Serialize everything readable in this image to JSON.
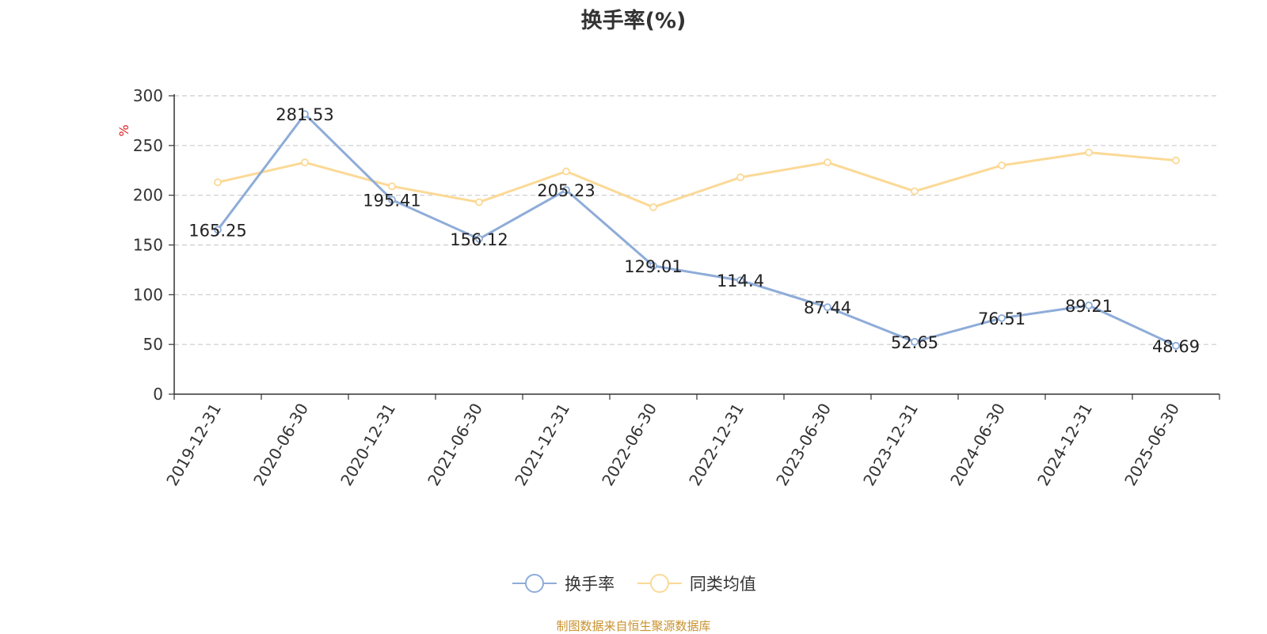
{
  "chart_data": {
    "type": "line",
    "title": "换手率(%)",
    "ylabel": "%",
    "categories": [
      "2019-12-31",
      "2020-06-30",
      "2020-12-31",
      "2021-06-30",
      "2021-12-31",
      "2022-06-30",
      "2022-12-31",
      "2023-06-30",
      "2023-12-31",
      "2024-06-30",
      "2024-12-31",
      "2025-06-30"
    ],
    "ylim": [
      0,
      300
    ],
    "yticks": [
      0,
      50,
      100,
      150,
      200,
      250,
      300
    ],
    "grid": true,
    "legend_position": "bottom",
    "series": [
      {
        "name": "换手率",
        "color": "#8eacd8",
        "values": [
          165.25,
          281.53,
          195.41,
          156.12,
          205.23,
          129.01,
          114.4,
          87.44,
          52.65,
          76.51,
          89.21,
          48.69
        ],
        "labels": [
          "165.25",
          "281.53",
          "195.41",
          "156.12",
          "205.23",
          "129.01",
          "114.4",
          "87.44",
          "52.65",
          "76.51",
          "89.21",
          "48.69"
        ]
      },
      {
        "name": "同类均值",
        "color": "#fbd996",
        "values": [
          213,
          233,
          209,
          193,
          224,
          188,
          218,
          233,
          204,
          230,
          243,
          235
        ]
      }
    ]
  },
  "footer": {
    "source": "制图数据来自恒生聚源数据库"
  }
}
